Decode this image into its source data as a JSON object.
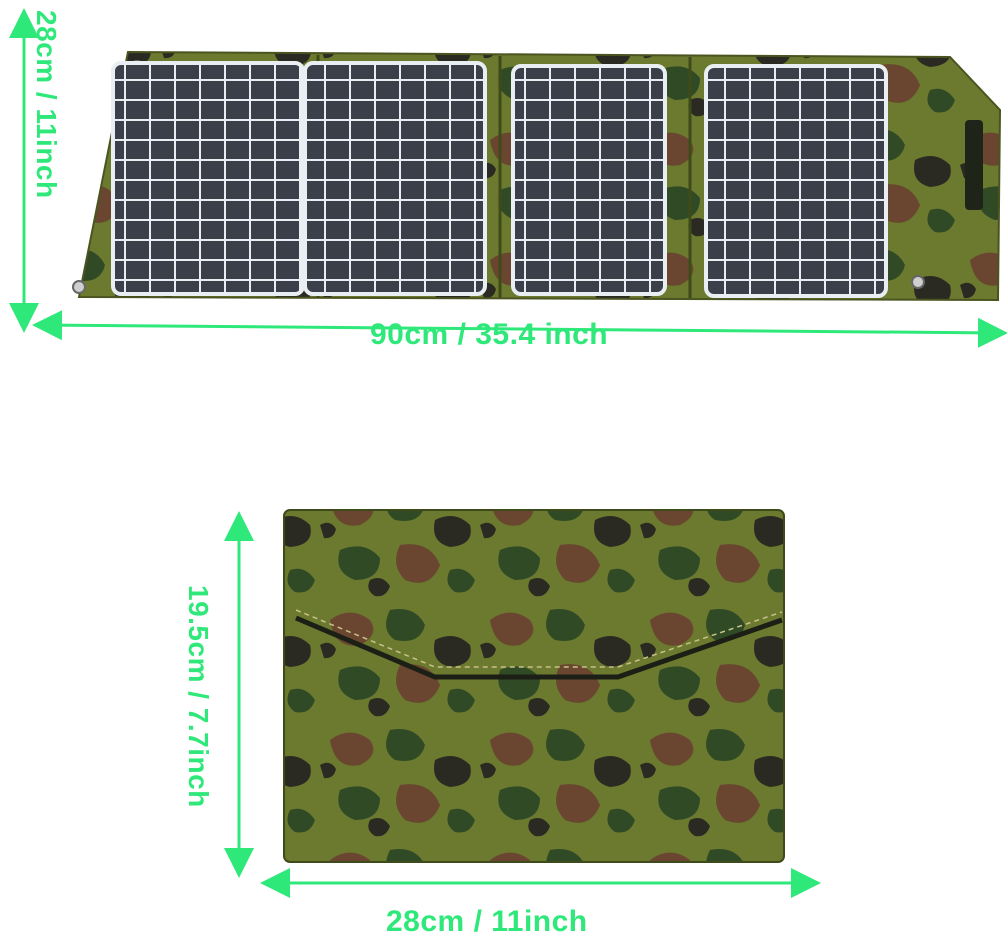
{
  "unfolded_panel": {
    "width_label": "90cm / 35.4 inch",
    "height_label": "28cm / 11inch",
    "solar_cell_count": 4
  },
  "folded_pouch": {
    "width_label": "28cm / 11inch",
    "height_label": "19.5cm / 7.7inch"
  },
  "colors": {
    "dimension_arrow": "#2ee87a",
    "camo_base": "#6b7a2e",
    "camo_dark_green": "#2f4a25",
    "camo_brown": "#6a4630",
    "camo_black": "#2b2a22",
    "solar_cell": "#3a3f4a",
    "cell_grid": "#e9eef2"
  }
}
